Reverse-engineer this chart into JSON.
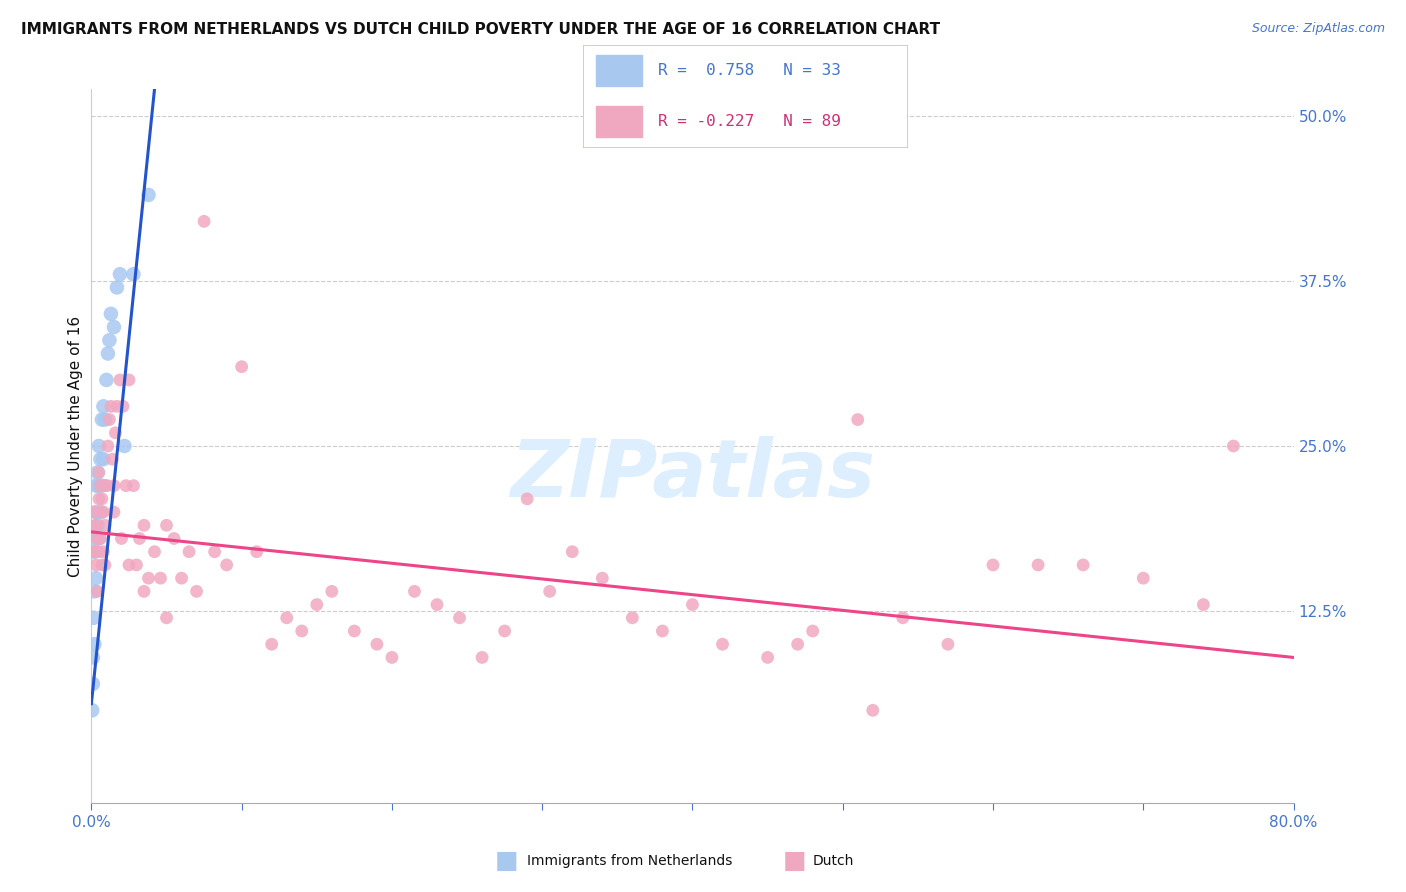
{
  "title": "IMMIGRANTS FROM NETHERLANDS VS DUTCH CHILD POVERTY UNDER THE AGE OF 16 CORRELATION CHART",
  "source": "Source: ZipAtlas.com",
  "ylabel": "Child Poverty Under the Age of 16",
  "x_min": 0.0,
  "x_max": 0.8,
  "y_min": -0.02,
  "y_max": 0.52,
  "y_ticks_right": [
    0.125,
    0.25,
    0.375,
    0.5
  ],
  "x_ticks": [
    0.0,
    0.1,
    0.2,
    0.3,
    0.4,
    0.5,
    0.6,
    0.7,
    0.8
  ],
  "blue_scatter_x": [
    0.0005,
    0.001,
    0.001,
    0.0015,
    0.002,
    0.002,
    0.002,
    0.003,
    0.003,
    0.003,
    0.003,
    0.004,
    0.004,
    0.005,
    0.005,
    0.005,
    0.006,
    0.006,
    0.007,
    0.007,
    0.008,
    0.008,
    0.009,
    0.01,
    0.011,
    0.012,
    0.013,
    0.015,
    0.017,
    0.019,
    0.022,
    0.028,
    0.038
  ],
  "blue_scatter_y": [
    0.05,
    0.07,
    0.09,
    0.12,
    0.1,
    0.14,
    0.17,
    0.15,
    0.18,
    0.2,
    0.22,
    0.19,
    0.23,
    0.18,
    0.22,
    0.25,
    0.2,
    0.24,
    0.22,
    0.27,
    0.24,
    0.28,
    0.27,
    0.3,
    0.32,
    0.33,
    0.35,
    0.34,
    0.37,
    0.38,
    0.25,
    0.38,
    0.44
  ],
  "pink_scatter_x": [
    0.001,
    0.002,
    0.002,
    0.003,
    0.003,
    0.004,
    0.004,
    0.005,
    0.005,
    0.006,
    0.006,
    0.007,
    0.007,
    0.008,
    0.008,
    0.009,
    0.009,
    0.01,
    0.011,
    0.012,
    0.013,
    0.014,
    0.015,
    0.016,
    0.017,
    0.019,
    0.021,
    0.023,
    0.025,
    0.028,
    0.03,
    0.032,
    0.035,
    0.038,
    0.042,
    0.046,
    0.05,
    0.055,
    0.06,
    0.065,
    0.07,
    0.075,
    0.082,
    0.09,
    0.1,
    0.11,
    0.12,
    0.13,
    0.14,
    0.15,
    0.16,
    0.175,
    0.19,
    0.2,
    0.215,
    0.23,
    0.245,
    0.26,
    0.275,
    0.29,
    0.305,
    0.32,
    0.34,
    0.36,
    0.38,
    0.4,
    0.42,
    0.45,
    0.48,
    0.51,
    0.54,
    0.57,
    0.6,
    0.63,
    0.66,
    0.7,
    0.74,
    0.76,
    0.003,
    0.005,
    0.007,
    0.01,
    0.015,
    0.02,
    0.025,
    0.035,
    0.05,
    0.52,
    0.47
  ],
  "pink_scatter_y": [
    0.17,
    0.17,
    0.2,
    0.16,
    0.19,
    0.14,
    0.18,
    0.17,
    0.21,
    0.18,
    0.22,
    0.16,
    0.21,
    0.17,
    0.2,
    0.16,
    0.19,
    0.22,
    0.25,
    0.27,
    0.28,
    0.24,
    0.22,
    0.26,
    0.28,
    0.3,
    0.28,
    0.22,
    0.3,
    0.22,
    0.16,
    0.18,
    0.19,
    0.15,
    0.17,
    0.15,
    0.19,
    0.18,
    0.15,
    0.17,
    0.14,
    0.42,
    0.17,
    0.16,
    0.31,
    0.17,
    0.1,
    0.12,
    0.11,
    0.13,
    0.14,
    0.11,
    0.1,
    0.09,
    0.14,
    0.13,
    0.12,
    0.09,
    0.11,
    0.21,
    0.14,
    0.17,
    0.15,
    0.12,
    0.11,
    0.13,
    0.1,
    0.09,
    0.11,
    0.27,
    0.12,
    0.1,
    0.16,
    0.16,
    0.16,
    0.15,
    0.13,
    0.25,
    0.19,
    0.23,
    0.2,
    0.22,
    0.2,
    0.18,
    0.16,
    0.14,
    0.12,
    0.05,
    0.1
  ],
  "blue_trend_x0": 0.0,
  "blue_trend_y0": 0.055,
  "blue_trend_x1": 0.042,
  "blue_trend_y1": 0.52,
  "pink_trend_x0": 0.0,
  "pink_trend_y0": 0.185,
  "pink_trend_x1": 0.8,
  "pink_trend_y1": 0.09,
  "blue_dot_color": "#a8c8f0",
  "pink_dot_color": "#f0a8c0",
  "blue_line_color": "#2255cc",
  "pink_line_color": "#ee4488",
  "axis_label_color": "#4477cc",
  "title_color": "#111111",
  "grid_color": "#cccccc",
  "watermark_color": "#ddeeff",
  "background_color": "#ffffff",
  "blue_dot_size": 110,
  "pink_dot_size": 85,
  "legend_blue_label": "R =  0.758   N = 33",
  "legend_pink_label": "R = -0.227   N = 89",
  "bottom_legend_blue": "Immigrants from Netherlands",
  "bottom_legend_pink": "Dutch"
}
